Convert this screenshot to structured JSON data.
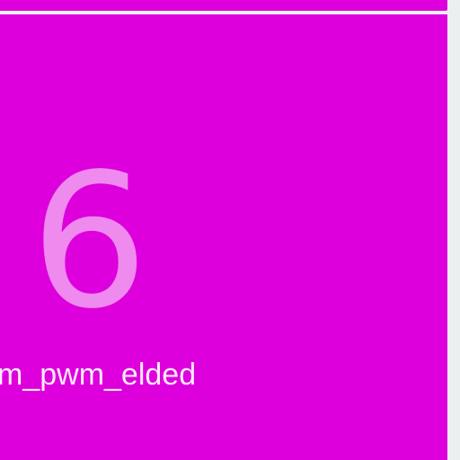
{
  "tile": {
    "number": "6",
    "label": "m_pwm_elded"
  },
  "colors": {
    "background": "#eceff1",
    "tile": "#dd00dd",
    "number_text": "#ef8aef",
    "label_text": "#fbeafb"
  }
}
